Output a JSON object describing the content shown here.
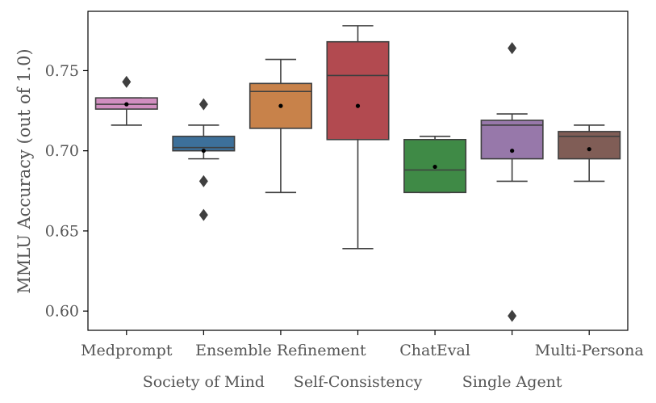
{
  "chart_data": {
    "type": "box",
    "title": "",
    "xlabel": "",
    "ylabel": "MMLU Accuracy (out of 1.0)",
    "ylim": [
      0.588,
      0.787
    ],
    "yticks": [
      0.6,
      0.65,
      0.7,
      0.75
    ],
    "ytick_labels": [
      "0.60",
      "0.65",
      "0.70",
      "0.75"
    ],
    "grid": false,
    "legend": "none",
    "categories": [
      "Medprompt",
      "Society of Mind",
      "Ensemble Refinement",
      "Self-Consistency",
      "ChatEval",
      "Single Agent",
      "Multi-Persona"
    ],
    "label_rows": [
      0,
      1,
      0,
      1,
      0,
      1,
      0
    ],
    "colors": [
      "#d18ec0",
      "#3d709a",
      "#c8824a",
      "#b24a50",
      "#3f8a46",
      "#9778aa",
      "#805d56"
    ],
    "boxes": [
      {
        "whisker_low": 0.716,
        "q1": 0.726,
        "median": 0.729,
        "q3": 0.733,
        "whisker_high": 0.733,
        "mean": 0.729,
        "outliers": [
          0.743
        ]
      },
      {
        "whisker_low": 0.695,
        "q1": 0.7,
        "median": 0.702,
        "q3": 0.709,
        "whisker_high": 0.716,
        "mean": 0.7,
        "outliers": [
          0.729,
          0.681,
          0.66
        ]
      },
      {
        "whisker_low": 0.674,
        "q1": 0.714,
        "median": 0.737,
        "q3": 0.742,
        "whisker_high": 0.757,
        "mean": 0.728,
        "outliers": []
      },
      {
        "whisker_low": 0.639,
        "q1": 0.707,
        "median": 0.747,
        "q3": 0.768,
        "whisker_high": 0.778,
        "mean": 0.728,
        "outliers": []
      },
      {
        "whisker_low": 0.674,
        "q1": 0.674,
        "median": 0.688,
        "q3": 0.707,
        "whisker_high": 0.709,
        "mean": 0.69,
        "outliers": []
      },
      {
        "whisker_low": 0.681,
        "q1": 0.695,
        "median": 0.716,
        "q3": 0.719,
        "whisker_high": 0.723,
        "mean": 0.7,
        "outliers": [
          0.764,
          0.597
        ]
      },
      {
        "whisker_low": 0.681,
        "q1": 0.695,
        "median": 0.709,
        "q3": 0.712,
        "whisker_high": 0.716,
        "mean": 0.701,
        "outliers": []
      }
    ]
  }
}
